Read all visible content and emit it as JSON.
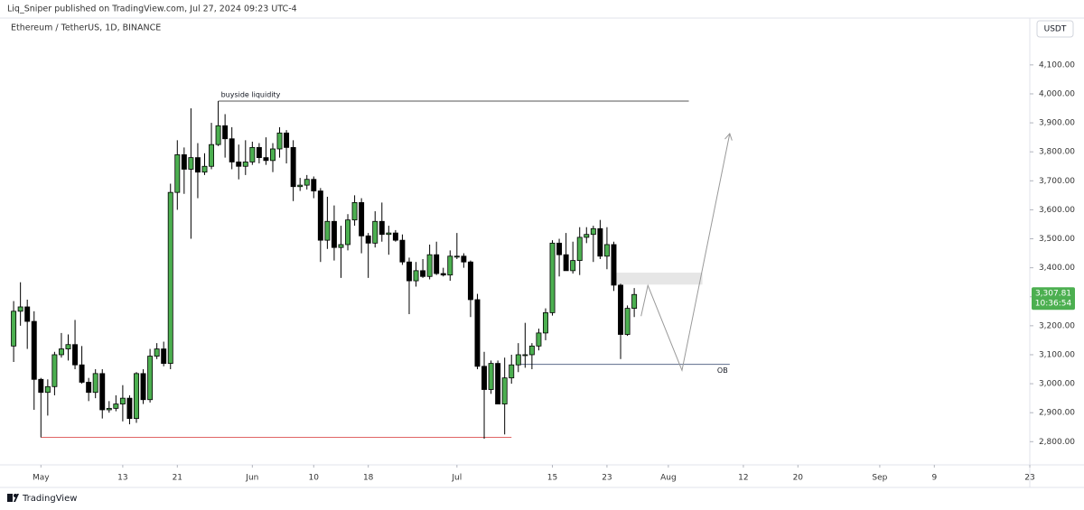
{
  "header": "Liq_Sniper published on TradingView.com, Jul 27, 2024 09:23 UTC-4",
  "footer": "TradingView",
  "chart_data": {
    "type": "candlestick",
    "title": "Ethereum / TetherUS, 1D, BINANCE",
    "currency": "USDT",
    "up_color": "#4caf50",
    "down_color": "#000000",
    "x": [
      "2024-04-27",
      "2024-04-28",
      "2024-04-29",
      "2024-04-30",
      "2024-05-01",
      "2024-05-02",
      "2024-05-03",
      "2024-05-04",
      "2024-05-05",
      "2024-05-06",
      "2024-05-07",
      "2024-05-08",
      "2024-05-09",
      "2024-05-10",
      "2024-05-11",
      "2024-05-12",
      "2024-05-13",
      "2024-05-14",
      "2024-05-15",
      "2024-05-16",
      "2024-05-17",
      "2024-05-18",
      "2024-05-19",
      "2024-05-20",
      "2024-05-21",
      "2024-05-22",
      "2024-05-23",
      "2024-05-24",
      "2024-05-25",
      "2024-05-26",
      "2024-05-27",
      "2024-05-28",
      "2024-05-29",
      "2024-05-30",
      "2024-05-31",
      "2024-06-01",
      "2024-06-02",
      "2024-06-03",
      "2024-06-04",
      "2024-06-05",
      "2024-06-06",
      "2024-06-07",
      "2024-06-08",
      "2024-06-09",
      "2024-06-10",
      "2024-06-11",
      "2024-06-12",
      "2024-06-13",
      "2024-06-14",
      "2024-06-15",
      "2024-06-16",
      "2024-06-17",
      "2024-06-18",
      "2024-06-19",
      "2024-06-20",
      "2024-06-21",
      "2024-06-22",
      "2024-06-23",
      "2024-06-24",
      "2024-06-25",
      "2024-06-26",
      "2024-06-27",
      "2024-06-28",
      "2024-06-29",
      "2024-06-30",
      "2024-07-01",
      "2024-07-02",
      "2024-07-03",
      "2024-07-04",
      "2024-07-05",
      "2024-07-06",
      "2024-07-07",
      "2024-07-08",
      "2024-07-09",
      "2024-07-10",
      "2024-07-11",
      "2024-07-12",
      "2024-07-13",
      "2024-07-14",
      "2024-07-15",
      "2024-07-16",
      "2024-07-17",
      "2024-07-18",
      "2024-07-19",
      "2024-07-20",
      "2024-07-21",
      "2024-07-22",
      "2024-07-23",
      "2024-07-24",
      "2024-07-25",
      "2024-07-26",
      "2024-07-27"
    ],
    "open": [
      3130,
      3250,
      3265,
      3215,
      3015,
      2970,
      2990,
      3100,
      3120,
      3135,
      3065,
      3005,
      2970,
      3035,
      2910,
      2915,
      2930,
      2950,
      2880,
      3035,
      2945,
      3095,
      3120,
      3070,
      3660,
      3790,
      3740,
      3780,
      3730,
      3750,
      3825,
      3890,
      3845,
      3765,
      3750,
      3765,
      3815,
      3780,
      3770,
      3810,
      3865,
      3815,
      3680,
      3685,
      3705,
      3665,
      3495,
      3560,
      3470,
      3480,
      3565,
      3625,
      3510,
      3485,
      3560,
      3515,
      3520,
      3495,
      3420,
      3355,
      3390,
      3370,
      3445,
      3380,
      3375,
      3440,
      3440,
      3420,
      3290,
      3060,
      2980,
      3070,
      2930,
      3020,
      3065,
      3100,
      3100,
      3130,
      3175,
      3245,
      3485,
      3445,
      3390,
      3425,
      3505,
      3515,
      3535,
      3440,
      3480,
      3340,
      3170,
      3260
    ],
    "high": [
      3285,
      3350,
      3290,
      3250,
      3020,
      3015,
      3110,
      3175,
      3170,
      3220,
      3130,
      3020,
      3050,
      3050,
      2940,
      2960,
      2995,
      2960,
      3040,
      3050,
      3120,
      3140,
      3145,
      3690,
      3840,
      3815,
      3950,
      3830,
      3795,
      3900,
      3975,
      3930,
      3885,
      3825,
      3840,
      3835,
      3830,
      3850,
      3830,
      3885,
      3875,
      3840,
      3710,
      3720,
      3715,
      3675,
      3645,
      3615,
      3545,
      3585,
      3650,
      3640,
      3520,
      3595,
      3625,
      3545,
      3530,
      3515,
      3435,
      3420,
      3430,
      3480,
      3490,
      3400,
      3460,
      3520,
      3450,
      3425,
      3310,
      3110,
      3080,
      3080,
      3090,
      3100,
      3140,
      3210,
      3140,
      3190,
      3260,
      3495,
      3500,
      3520,
      3490,
      3540,
      3540,
      3545,
      3565,
      3540,
      3490,
      3345,
      3270,
      3330
    ],
    "low": [
      3075,
      3200,
      3120,
      2910,
      2815,
      2890,
      2960,
      3090,
      3080,
      3050,
      3000,
      2940,
      2950,
      2880,
      2900,
      2905,
      2870,
      2860,
      2865,
      2930,
      2935,
      3085,
      3060,
      3050,
      3600,
      3655,
      3500,
      3640,
      3720,
      3740,
      3820,
      3780,
      3740,
      3705,
      3720,
      3755,
      3760,
      3755,
      3730,
      3780,
      3760,
      3630,
      3665,
      3670,
      3640,
      3420,
      3465,
      3425,
      3365,
      3460,
      3545,
      3450,
      3365,
      3470,
      3490,
      3445,
      3490,
      3410,
      3240,
      3335,
      3365,
      3360,
      3375,
      3370,
      3355,
      3430,
      3400,
      3230,
      3050,
      2810,
      2965,
      2930,
      2825,
      3000,
      3040,
      3055,
      3050,
      3115,
      3150,
      3235,
      3370,
      3390,
      3380,
      3375,
      3485,
      3420,
      3430,
      3395,
      3320,
      3085,
      3165,
      3230
    ],
    "close": [
      3250,
      3265,
      3215,
      3015,
      2970,
      2990,
      3100,
      3120,
      3135,
      3065,
      3005,
      2970,
      3035,
      2910,
      2915,
      2930,
      2950,
      2880,
      3035,
      2945,
      3095,
      3120,
      3070,
      3660,
      3790,
      3740,
      3780,
      3730,
      3750,
      3825,
      3890,
      3845,
      3765,
      3750,
      3765,
      3815,
      3780,
      3770,
      3810,
      3865,
      3815,
      3680,
      3685,
      3705,
      3665,
      3495,
      3560,
      3470,
      3480,
      3565,
      3625,
      3510,
      3485,
      3560,
      3515,
      3520,
      3495,
      3420,
      3355,
      3390,
      3370,
      3445,
      3380,
      3375,
      3440,
      3440,
      3420,
      3290,
      3060,
      2980,
      3070,
      2930,
      3020,
      3065,
      3100,
      3100,
      3130,
      3175,
      3245,
      3485,
      3445,
      3390,
      3425,
      3505,
      3515,
      3535,
      3440,
      3480,
      3340,
      3170,
      3260,
      3307.81
    ],
    "last_price": {
      "value": 3307.81,
      "label": "3,307.81"
    },
    "countdown": "10:36:54",
    "xlim": [
      "2024-04-25",
      "2024-09-23"
    ],
    "xticks": [
      {
        "value": "2024-05-01",
        "label": "May"
      },
      {
        "value": "2024-05-13",
        "label": "13"
      },
      {
        "value": "2024-05-21",
        "label": "21"
      },
      {
        "value": "2024-06-01",
        "label": "Jun"
      },
      {
        "value": "2024-06-10",
        "label": "10"
      },
      {
        "value": "2024-06-18",
        "label": "18"
      },
      {
        "value": "2024-07-01",
        "label": "Jul"
      },
      {
        "value": "2024-07-15",
        "label": "15"
      },
      {
        "value": "2024-07-23",
        "label": "23"
      },
      {
        "value": "2024-08-01",
        "label": "Aug"
      },
      {
        "value": "2024-08-12",
        "label": "12"
      },
      {
        "value": "2024-08-20",
        "label": "20"
      },
      {
        "value": "2024-09-01",
        "label": "Sep"
      },
      {
        "value": "2024-09-09",
        "label": "9"
      },
      {
        "value": "2024-09-23",
        "label": "23"
      }
    ],
    "ylim": [
      2720,
      4193
    ],
    "yticks": [
      {
        "value": 2800,
        "label": "2,800.00"
      },
      {
        "value": 2900,
        "label": "2,900.00"
      },
      {
        "value": 3000,
        "label": "3,000.00"
      },
      {
        "value": 3100,
        "label": "3,100.00"
      },
      {
        "value": 3200,
        "label": "3,200.00"
      },
      {
        "value": 3300,
        "label": "3,300.00"
      },
      {
        "value": 3400,
        "label": "3,400.00"
      },
      {
        "value": 3500,
        "label": "3,500.00"
      },
      {
        "value": 3600,
        "label": "3,600.00"
      },
      {
        "value": 3700,
        "label": "3,700.00"
      },
      {
        "value": 3800,
        "label": "3,800.00"
      },
      {
        "value": 3900,
        "label": "3,900.00"
      },
      {
        "value": 4000,
        "label": "4,000.00"
      },
      {
        "value": 4100,
        "label": "4,100.00"
      }
    ],
    "grid": false,
    "levels": [
      {
        "label": "buyside liquidity",
        "value": 3975,
        "from": "2024-05-27",
        "to": "2024-08-04",
        "color": "#555555",
        "label_side": "above-start"
      },
      {
        "value": 2815,
        "from": "2024-05-01",
        "to": "2024-07-09",
        "color": "#e06666"
      },
      {
        "label": "OB",
        "value": 3067,
        "from": "2024-07-10",
        "to": "2024-08-10",
        "color": "#5b6b8c",
        "label_side": "below-end"
      }
    ],
    "zone": {
      "from": "2024-07-24",
      "to": "2024-08-06",
      "low": 3342,
      "high": 3383,
      "color": "#e6e6e6"
    },
    "projection": {
      "x": [
        "2024-07-28",
        "2024-07-29",
        "2024-08-03",
        "2024-08-10"
      ],
      "y": [
        3233,
        3339,
        3046,
        3863
      ],
      "color": "#999999"
    }
  }
}
